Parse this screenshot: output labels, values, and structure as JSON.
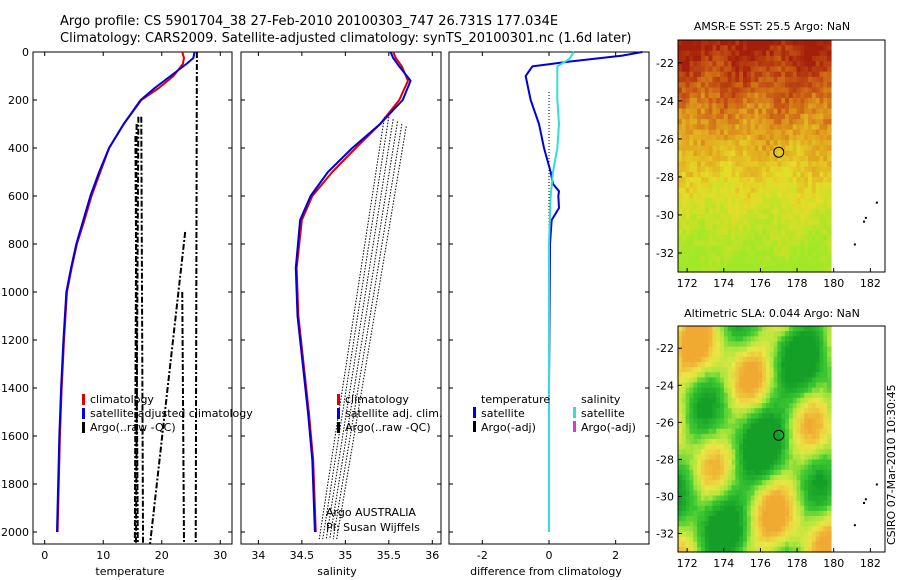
{
  "header": {
    "line1": "Argo profile: CS 5901704_38 27-Feb-2010 20100303_747 26.731S 177.034E",
    "line2": "Climatology: CARS2009. Satellite-adjusted climatology: synTS_20100301.nc (1.6d later)"
  },
  "side_label": "CSIRO 07-Mar-2010 10:30:45",
  "colors": {
    "climatology": "#dd0000",
    "satellite": "#0000dd",
    "argo": "#000000",
    "sal_sat": "#33dddd",
    "sal_argo": "#dd33dd"
  },
  "chart_data": [
    {
      "type": "line",
      "id": "temperature",
      "xlabel": "temperature",
      "ylabel": "",
      "xlim": [
        -2,
        32
      ],
      "ylim": [
        0,
        2050
      ],
      "xticks": [
        0,
        10,
        20,
        30
      ],
      "yticks": [
        0,
        200,
        400,
        600,
        800,
        1000,
        1200,
        1400,
        1600,
        1800,
        2000
      ],
      "legend": [
        "climatology",
        "satellite-adjusted climatology",
        "Argo(..raw -QC)"
      ],
      "series": [
        {
          "name": "climatology",
          "x": [
            23.5,
            23.8,
            23.6,
            22.0,
            19.5,
            16.5,
            13.5,
            11.0,
            9.5,
            8.0,
            6.8,
            5.5,
            4.6,
            3.8,
            3.3,
            2.9,
            2.6,
            2.4,
            2.3,
            2.2
          ],
          "y": [
            0,
            25,
            50,
            100,
            150,
            200,
            300,
            400,
            500,
            600,
            700,
            800,
            900,
            1000,
            1200,
            1400,
            1600,
            1800,
            1900,
            2000
          ]
        },
        {
          "name": "satellite-adjusted climatology",
          "x": [
            25.6,
            25.4,
            24.2,
            21.5,
            18.8,
            16.4,
            13.5,
            11.0,
            9.3,
            7.8,
            6.6,
            5.4,
            4.5,
            3.7,
            3.2,
            2.8,
            2.5,
            2.3,
            2.2,
            2.1
          ],
          "y": [
            0,
            25,
            50,
            100,
            150,
            200,
            300,
            400,
            500,
            600,
            700,
            800,
            900,
            1000,
            1200,
            1400,
            1600,
            1800,
            1900,
            2000
          ]
        }
      ],
      "argo_lines": [
        {
          "x": [
            26.0,
            25.8
          ],
          "y": [
            0,
            2050
          ]
        },
        {
          "x": [
            16.5,
            16.8
          ],
          "y": [
            270,
            2050
          ]
        },
        {
          "x": [
            16.0,
            15.6
          ],
          "y": [
            270,
            2050
          ]
        },
        {
          "x": [
            15.7,
            15.4
          ],
          "y": [
            300,
            2050
          ]
        },
        {
          "x": [
            15.5,
            15.9
          ],
          "y": [
            350,
            2050
          ]
        },
        {
          "x": [
            24.0,
            18.0
          ],
          "y": [
            750,
            2050
          ]
        },
        {
          "x": [
            23.5,
            23.8
          ],
          "y": [
            1000,
            2050
          ]
        }
      ]
    },
    {
      "type": "line",
      "id": "salinity",
      "xlabel": "salinity",
      "ylabel": "",
      "xlim": [
        33.8,
        36.1
      ],
      "ylim": [
        0,
        2050
      ],
      "xticks": [
        34,
        34.5,
        35,
        35.5,
        36
      ],
      "legend": [
        "climatology",
        "satellite adj. clim.",
        "Argo(..raw -QC)"
      ],
      "annotations": [
        "Argo AUSTRALIA",
        "PI: Susan Wijffels"
      ],
      "series": [
        {
          "name": "climatology",
          "x": [
            35.55,
            35.58,
            35.65,
            35.72,
            35.62,
            35.4,
            35.12,
            34.85,
            34.62,
            34.5,
            34.44,
            34.46,
            34.52,
            34.58,
            34.63,
            34.65,
            34.66
          ],
          "y": [
            0,
            25,
            60,
            120,
            200,
            300,
            400,
            500,
            600,
            700,
            900,
            1100,
            1300,
            1500,
            1700,
            1900,
            2000
          ]
        },
        {
          "name": "satellite adj. clim.",
          "x": [
            35.52,
            35.55,
            35.62,
            35.75,
            35.66,
            35.4,
            35.08,
            34.8,
            34.6,
            34.48,
            34.43,
            34.45,
            34.51,
            34.57,
            34.62,
            34.64,
            34.65
          ],
          "y": [
            0,
            25,
            60,
            120,
            200,
            300,
            400,
            500,
            600,
            700,
            900,
            1100,
            1300,
            1500,
            1700,
            1900,
            2000
          ]
        }
      ],
      "argo_lines": [
        {
          "x": [
            35.45,
            34.7
          ],
          "y": [
            270,
            2030
          ]
        },
        {
          "x": [
            35.5,
            34.74
          ],
          "y": [
            270,
            2030
          ]
        },
        {
          "x": [
            35.55,
            34.78
          ],
          "y": [
            280,
            2030
          ]
        },
        {
          "x": [
            35.6,
            34.82
          ],
          "y": [
            290,
            2030
          ]
        },
        {
          "x": [
            35.65,
            34.86
          ],
          "y": [
            300,
            2030
          ]
        },
        {
          "x": [
            35.7,
            34.9
          ],
          "y": [
            310,
            2030
          ]
        }
      ]
    },
    {
      "type": "line",
      "id": "difference",
      "xlabel": "difference from climatology",
      "ylabel": "",
      "xlim": [
        -3.0,
        3.0
      ],
      "ylim": [
        0,
        2050
      ],
      "xticks": [
        -2,
        0,
        2
      ],
      "legend_left": [
        "temperature",
        "satellite",
        "Argo(-adj)"
      ],
      "legend_right": [
        "salinity",
        "satellite",
        "Argo(-adj)"
      ],
      "series": [
        {
          "name": "temperature satellite",
          "x": [
            2.8,
            2.2,
            0.6,
            -0.5,
            -0.7,
            -0.55,
            -0.3,
            -0.15,
            0.05,
            0.12,
            0.3,
            0.28,
            0.3,
            0.08,
            0.03,
            0.02,
            0.0,
            0.0,
            0.0
          ],
          "y": [
            0,
            15,
            40,
            60,
            100,
            200,
            300,
            400,
            500,
            550,
            580,
            600,
            650,
            700,
            800,
            1000,
            1400,
            1800,
            2000
          ]
        },
        {
          "name": "salinity satellite",
          "x": [
            0.75,
            0.6,
            0.25,
            0.25,
            0.25,
            0.3,
            0.25,
            0.12,
            0.05,
            0.0,
            0.0,
            0.0,
            0.0
          ],
          "y": [
            0,
            30,
            60,
            100,
            200,
            300,
            400,
            500,
            600,
            800,
            1200,
            1600,
            2000
          ]
        }
      ]
    }
  ],
  "maps": [
    {
      "id": "sst",
      "title": "AMSR-E SST: 25.5 Argo: NaN",
      "xticks": [
        172,
        174,
        176,
        178,
        180,
        182
      ],
      "yticks": [
        -22,
        -24,
        -26,
        -28,
        -30,
        -32
      ],
      "xlim": [
        171.5,
        182.8
      ],
      "ylim": [
        -33,
        -20.8
      ],
      "marker": [
        177.0,
        -26.7
      ]
    },
    {
      "id": "sla",
      "title": "Altimetric SLA: 0.044 Argo: NaN",
      "xticks": [
        172,
        174,
        176,
        178,
        180,
        182
      ],
      "yticks": [
        -22,
        -24,
        -26,
        -28,
        -30,
        -32
      ],
      "xlim": [
        171.5,
        182.8
      ],
      "ylim": [
        -33,
        -20.8
      ],
      "marker": [
        177.0,
        -26.7
      ]
    }
  ]
}
